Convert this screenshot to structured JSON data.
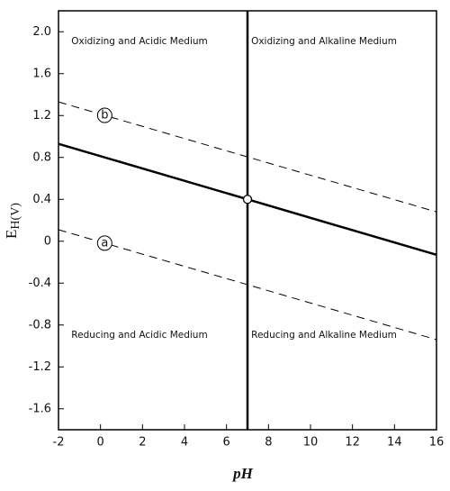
{
  "chart_data": {
    "type": "line",
    "x_label": "pH",
    "y_label": [
      "E",
      "H(V)"
    ],
    "xlim": [
      -2,
      16
    ],
    "xticks": [
      -2,
      0,
      2,
      4,
      6,
      8,
      10,
      12,
      14,
      16
    ],
    "ylim": [
      -1.8,
      2.2
    ],
    "yticks": [
      {
        "value": 2,
        "label": "2.0"
      },
      1.6,
      1.2,
      0.8,
      0.4,
      0,
      -0.4,
      -0.8,
      -1.2,
      -1.6
    ],
    "series": [
      {
        "x": [
          -2,
          16
        ],
        "values": [
          0.93,
          -0.13
        ],
        "color": "#000",
        "style": "solid"
      },
      {
        "name": "b",
        "x": [
          -2,
          16
        ],
        "values": [
          1.33,
          0.28
        ],
        "color": "#000",
        "style": "dashed"
      },
      {
        "name": "a",
        "x": [
          -2,
          16
        ],
        "values": [
          0.11,
          -0.94
        ],
        "color": "#000",
        "style": "dashed"
      },
      {
        "x": [
          7,
          7
        ],
        "values": [
          -1.8,
          2.2
        ],
        "color": "#000",
        "style": "solid"
      }
    ],
    "points": [
      {
        "x": 7,
        "y": 0.4
      }
    ],
    "annotations": [
      "Oxidizing and Acidic Medium",
      "Oxidizing and  Alkaline Medium",
      "Reducing and Acidic Medium",
      "Reducing and Alkaline Medium"
    ]
  }
}
